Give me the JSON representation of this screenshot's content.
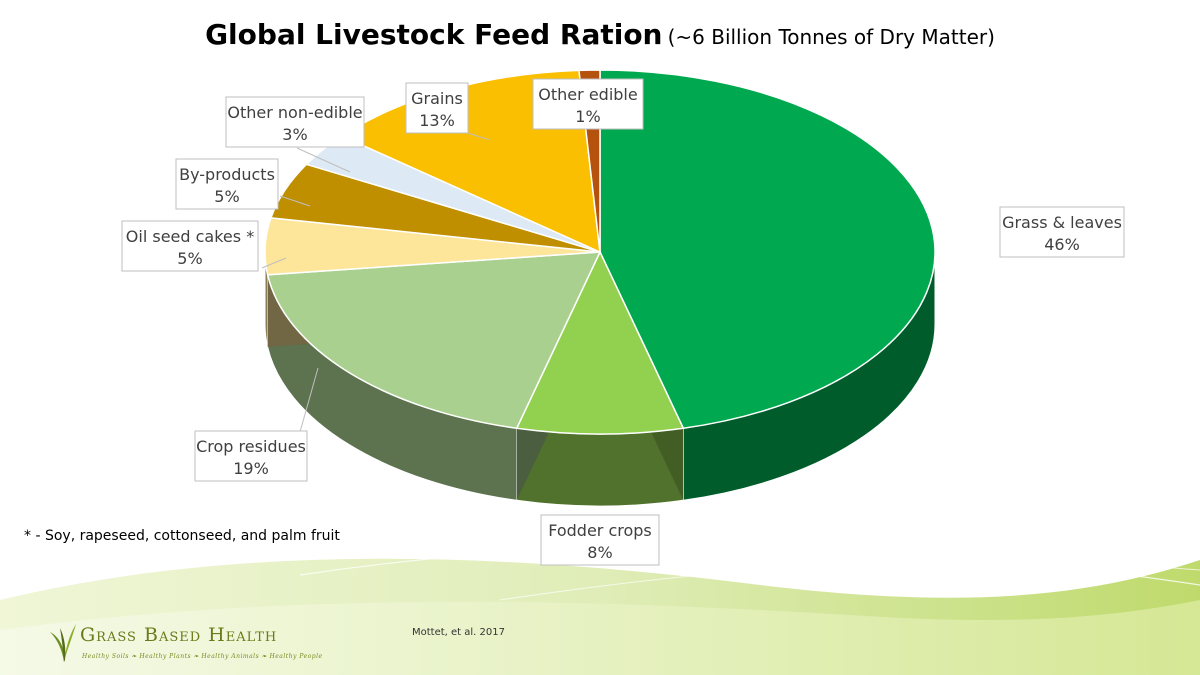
{
  "title": {
    "main": "Global Livestock Feed Ration",
    "sub": "(~6 Billion Tonnes of Dry Matter)"
  },
  "chart_data": {
    "type": "pie",
    "style": "3d-exploded",
    "title": "Global Livestock Feed Ration (~6 Billion Tonnes of Dry Matter)",
    "slices": [
      {
        "label": "Grass & leaves",
        "value": 46,
        "value_label": "46%",
        "color": "#00a94f"
      },
      {
        "label": "Fodder crops",
        "value": 8,
        "value_label": "8%",
        "color": "#92d050"
      },
      {
        "label": "Crop residues",
        "value": 19,
        "value_label": "19%",
        "color": "#a9d08e"
      },
      {
        "label": "Oil seed cakes *",
        "value": 5,
        "value_label": "5%",
        "color": "#fde59a"
      },
      {
        "label": "By-products",
        "value": 5,
        "value_label": "5%",
        "color": "#bf8f00"
      },
      {
        "label": "Other non-edible",
        "value": 3,
        "value_label": "3%",
        "color": "#dde9f4"
      },
      {
        "label": "Grains",
        "value": 13,
        "value_label": "13%",
        "color": "#fabf00"
      },
      {
        "label": "Other edible",
        "value": 1,
        "value_label": "1%",
        "color": "#b5520e"
      }
    ]
  },
  "footnote": "* - Soy, rapeseed, cottonseed, and palm fruit",
  "source": "Mottet, et al. 2017",
  "logo": {
    "name": "Grass Based Health",
    "tagline": "Healthy Soils  ❧  Healthy Plants  ❧  Healthy Animals  ❧  Healthy People"
  },
  "colors": {
    "background_wave": "#c5dc7a",
    "label_border": "#bfbfbf",
    "logo_text": "#6b7a1a"
  }
}
